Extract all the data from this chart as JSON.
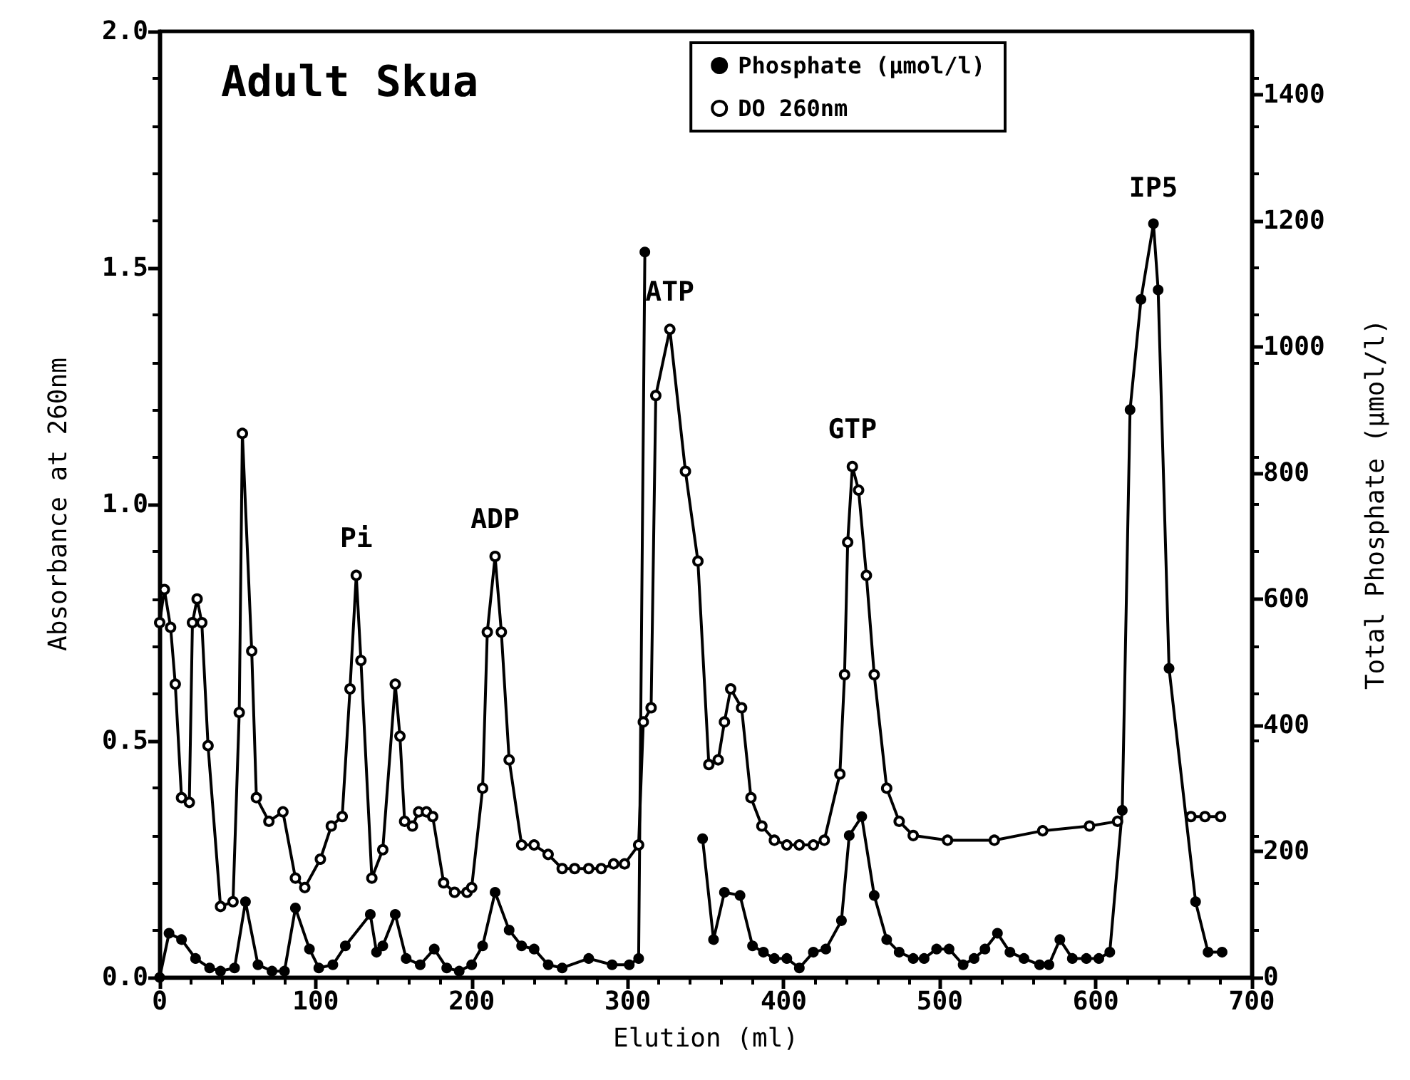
{
  "chart_data": {
    "type": "line",
    "title": "Adult Skua",
    "xlabel": "Elution (ml)",
    "ylabel": "Absorbance at 260nm",
    "y2label": "Total Phosphate (µmol/l)",
    "xlim": [
      0,
      700
    ],
    "xticks": [
      0,
      100,
      200,
      300,
      400,
      500,
      600,
      700
    ],
    "ylim": [
      0,
      2
    ],
    "yticks": [
      {
        "value": 0,
        "label": "0.0"
      },
      {
        "value": 0.5,
        "label": "0.5"
      },
      {
        "value": 1,
        "label": "1.0"
      },
      {
        "value": 1.5,
        "label": "1.5"
      },
      {
        "value": 2,
        "label": "2.0"
      }
    ],
    "y2lim": [
      0,
      1500
    ],
    "y2ticks": [
      0,
      200,
      400,
      600,
      800,
      1000,
      1200,
      1400
    ],
    "marker": "circle",
    "legend": "top",
    "grid": false,
    "annotations": [
      {
        "text": "Pi",
        "x": 126,
        "y": 0.85
      },
      {
        "text": "ADP",
        "x": 215,
        "y": 0.89
      },
      {
        "text": "ATP",
        "x": 327,
        "y": 1.37
      },
      {
        "text": "GTP",
        "x": 444,
        "y": 1.08
      },
      {
        "text": "IP5",
        "x": 637,
        "y": 1.59
      }
    ],
    "series": [
      {
        "name": "Phosphate (µmol/l)",
        "color": "#000000",
        "axis": "y2",
        "x": [
          0,
          6,
          14,
          23,
          32,
          39,
          48,
          55,
          63,
          72,
          80,
          87,
          96,
          102,
          111,
          119,
          135,
          139,
          143,
          151,
          158,
          167,
          176,
          184,
          192,
          200,
          207,
          215,
          224,
          232,
          240,
          249,
          258,
          275,
          290,
          301,
          307,
          311,
          330,
          348,
          355,
          362,
          372,
          380,
          387,
          394,
          402,
          410,
          419,
          427,
          437,
          442,
          450,
          458,
          466,
          474,
          483,
          490,
          498,
          506,
          515,
          522,
          529,
          537,
          545,
          554,
          564,
          570,
          577,
          585,
          594,
          602,
          609,
          617,
          622,
          629,
          637,
          640,
          647,
          664,
          672,
          681
        ],
        "values": [
          0,
          70,
          60,
          30,
          15,
          10,
          15,
          120,
          20,
          10,
          10,
          110,
          45,
          15,
          20,
          50,
          100,
          40,
          50,
          100,
          30,
          20,
          45,
          15,
          10,
          20,
          50,
          135,
          75,
          50,
          45,
          20,
          15,
          30,
          20,
          20,
          30,
          1150,
          null,
          220,
          60,
          135,
          130,
          50,
          40,
          30,
          30,
          15,
          40,
          45,
          90,
          225,
          255,
          130,
          60,
          40,
          30,
          30,
          45,
          45,
          20,
          30,
          45,
          70,
          40,
          30,
          20,
          20,
          60,
          30,
          30,
          30,
          40,
          265,
          900,
          1075,
          1195,
          1090,
          490,
          120,
          40,
          40
        ]
      },
      {
        "name": "DO 260nm",
        "color": "#000000",
        "x": [
          0,
          3,
          7,
          10,
          14,
          19,
          21,
          24,
          27,
          31,
          39,
          47,
          51,
          53,
          59,
          62,
          70,
          79,
          87,
          93,
          103,
          110,
          117,
          122,
          126,
          129,
          136,
          143,
          151,
          154,
          157,
          162,
          166,
          171,
          175,
          182,
          189,
          197,
          200,
          207,
          210,
          215,
          219,
          224,
          232,
          240,
          249,
          258,
          266,
          275,
          283,
          291,
          298,
          307,
          310,
          315,
          318,
          327,
          337,
          345,
          352,
          358,
          362,
          366,
          373,
          379,
          386,
          394,
          402,
          410,
          419,
          426,
          436,
          439,
          441,
          444,
          448,
          453,
          458,
          466,
          474,
          483,
          505,
          535,
          566,
          596,
          614,
          640,
          661,
          670,
          680
        ],
        "values": [
          0.75,
          0.82,
          0.74,
          0.62,
          0.38,
          0.37,
          0.75,
          0.8,
          0.75,
          0.49,
          0.15,
          0.16,
          0.56,
          1.15,
          0.69,
          0.38,
          0.33,
          0.35,
          0.21,
          0.19,
          0.25,
          0.32,
          0.34,
          0.61,
          0.85,
          0.67,
          0.21,
          0.27,
          0.62,
          0.51,
          0.33,
          0.32,
          0.35,
          0.35,
          0.34,
          0.2,
          0.18,
          0.18,
          0.19,
          0.4,
          0.73,
          0.89,
          0.73,
          0.46,
          0.28,
          0.28,
          0.26,
          0.23,
          0.23,
          0.23,
          0.23,
          0.24,
          0.24,
          0.28,
          0.54,
          0.57,
          1.23,
          1.37,
          1.07,
          0.88,
          0.45,
          0.46,
          0.54,
          0.61,
          0.57,
          0.38,
          0.32,
          0.29,
          0.28,
          0.28,
          0.28,
          0.29,
          0.43,
          0.64,
          0.92,
          1.08,
          1.03,
          0.85,
          0.64,
          0.4,
          0.33,
          0.3,
          0.29,
          0.29,
          0.31,
          0.32,
          0.33,
          null,
          0.34,
          0.34,
          0.34
        ]
      }
    ]
  }
}
